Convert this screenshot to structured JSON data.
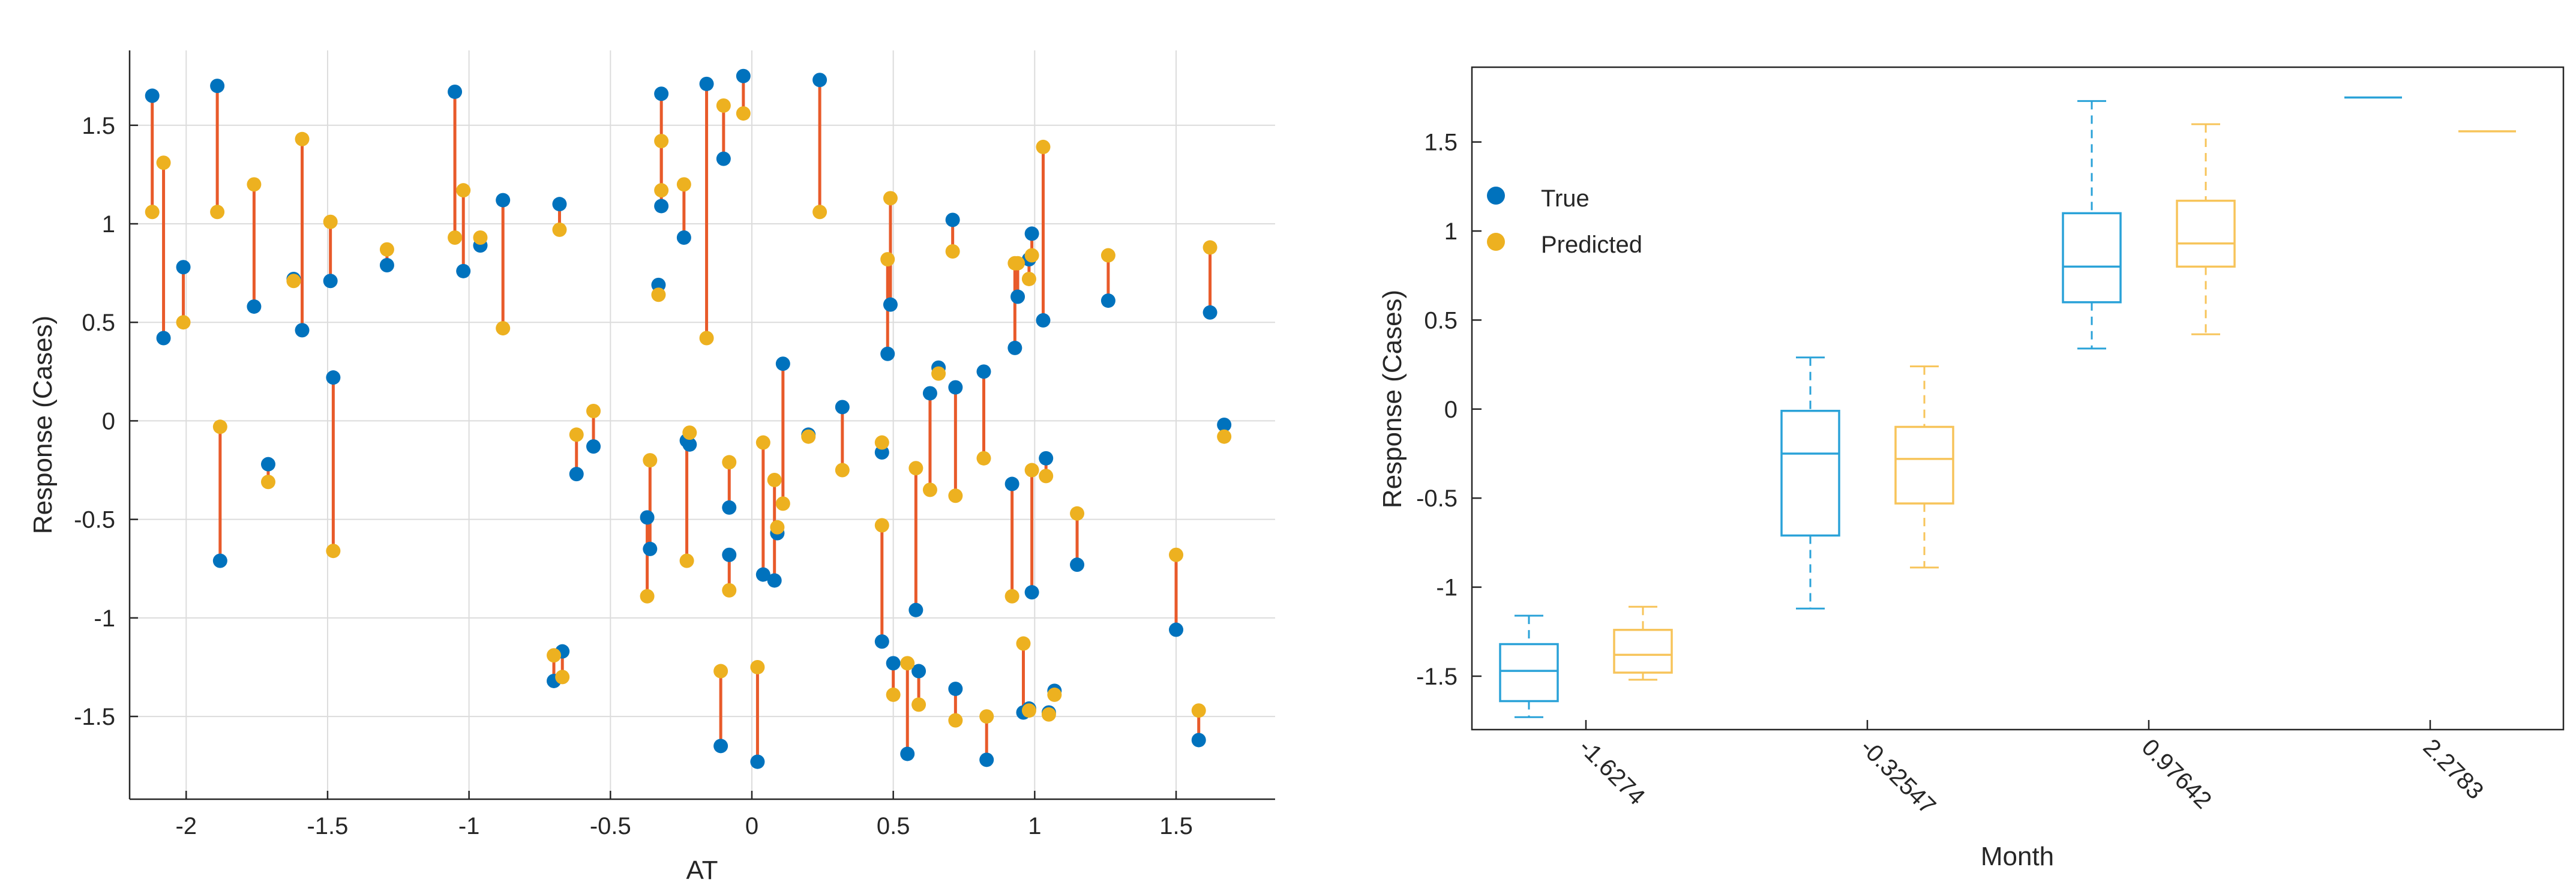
{
  "colors": {
    "true": "#0072BD",
    "predicted": "#EDB120",
    "residual": "#E85A2A",
    "axis": "#262626",
    "grid": "#dcdcdc"
  },
  "chart_data": [
    {
      "type": "scatter",
      "title": "",
      "xlabel": "AT",
      "ylabel": "Response (Cases)",
      "xlim": [
        -2.2,
        1.85
      ],
      "ylim": [
        -1.92,
        1.88
      ],
      "grid": true,
      "xticks": [
        -2,
        -1.5,
        -1,
        -0.5,
        0,
        0.5,
        1,
        1.5
      ],
      "xtick_labels": [
        "-2",
        "-1.5",
        "-1",
        "-0.5",
        "0",
        "0.5",
        "1",
        "1.5"
      ],
      "yticks": [
        -1.5,
        -1,
        -0.5,
        0,
        0.5,
        1,
        1.5
      ],
      "ytick_labels": [
        "-1.5",
        "-1",
        "-0.5",
        "0",
        "0.5",
        "1",
        "1.5"
      ],
      "series": [
        {
          "name": "True",
          "color": "#0072BD"
        },
        {
          "name": "Predicted",
          "color": "#EDB120"
        }
      ],
      "points": [
        {
          "x": -2.12,
          "true": 1.65,
          "pred": 1.06
        },
        {
          "x": -2.08,
          "true": 0.42,
          "pred": 1.31
        },
        {
          "x": -2.01,
          "true": 0.78,
          "pred": 0.5
        },
        {
          "x": -1.89,
          "true": 1.7,
          "pred": 1.06
        },
        {
          "x": -1.88,
          "true": -0.71,
          "pred": -0.03
        },
        {
          "x": -1.76,
          "true": 0.58,
          "pred": 1.2
        },
        {
          "x": -1.71,
          "true": -0.22,
          "pred": -0.31
        },
        {
          "x": -1.62,
          "true": 0.72,
          "pred": 0.71
        },
        {
          "x": -1.59,
          "true": 0.46,
          "pred": 1.43
        },
        {
          "x": -1.49,
          "true": 0.71,
          "pred": 1.01
        },
        {
          "x": -1.48,
          "true": 0.22,
          "pred": -0.66
        },
        {
          "x": -1.29,
          "true": 0.79,
          "pred": 0.87
        },
        {
          "x": -1.05,
          "true": 1.67,
          "pred": 0.93
        },
        {
          "x": -1.02,
          "true": 0.76,
          "pred": 1.17
        },
        {
          "x": -0.96,
          "true": 0.89,
          "pred": 0.93
        },
        {
          "x": -0.88,
          "true": 1.12,
          "pred": 0.47
        },
        {
          "x": -0.68,
          "true": 1.1,
          "pred": 0.97
        },
        {
          "x": -0.7,
          "true": -1.32,
          "pred": -1.19
        },
        {
          "x": -0.67,
          "true": -1.17,
          "pred": -1.3
        },
        {
          "x": -0.62,
          "true": -0.27,
          "pred": -0.07
        },
        {
          "x": -0.56,
          "true": -0.13,
          "pred": 0.05
        },
        {
          "x": -0.37,
          "true": -0.49,
          "pred": -0.89
        },
        {
          "x": -0.36,
          "true": -0.65,
          "pred": -0.2
        },
        {
          "x": -0.32,
          "true": 1.66,
          "pred": 1.17
        },
        {
          "x": -0.33,
          "true": 0.69,
          "pred": 0.64
        },
        {
          "x": -0.32,
          "true": 1.09,
          "pred": 1.42
        },
        {
          "x": -0.24,
          "true": 0.93,
          "pred": 1.2
        },
        {
          "x": -0.23,
          "true": -0.1,
          "pred": -0.71
        },
        {
          "x": -0.22,
          "true": -0.12,
          "pred": -0.06
        },
        {
          "x": -0.16,
          "true": 1.71,
          "pred": 0.42
        },
        {
          "x": -0.1,
          "true": 1.33,
          "pred": 1.6
        },
        {
          "x": -0.11,
          "true": -1.65,
          "pred": -1.27
        },
        {
          "x": -0.08,
          "true": -0.44,
          "pred": -0.21
        },
        {
          "x": -0.08,
          "true": -0.68,
          "pred": -0.86
        },
        {
          "x": -0.03,
          "true": 1.75,
          "pred": 1.56
        },
        {
          "x": 0.02,
          "true": -1.73,
          "pred": -1.25
        },
        {
          "x": 0.04,
          "true": -0.78,
          "pred": -0.11
        },
        {
          "x": 0.08,
          "true": -0.81,
          "pred": -0.3
        },
        {
          "x": 0.09,
          "true": -0.57,
          "pred": -0.54
        },
        {
          "x": 0.11,
          "true": 0.29,
          "pred": -0.42
        },
        {
          "x": 0.2,
          "true": -0.07,
          "pred": -0.08
        },
        {
          "x": 0.24,
          "true": 1.73,
          "pred": 1.06
        },
        {
          "x": 0.32,
          "true": 0.07,
          "pred": -0.25
        },
        {
          "x": 0.46,
          "true": -0.16,
          "pred": -0.11
        },
        {
          "x": 0.46,
          "true": -1.12,
          "pred": -0.53
        },
        {
          "x": 0.48,
          "true": 0.34,
          "pred": 0.82
        },
        {
          "x": 0.49,
          "true": 0.59,
          "pred": 1.13
        },
        {
          "x": 0.5,
          "true": -1.23,
          "pred": -1.39
        },
        {
          "x": 0.55,
          "true": -1.69,
          "pred": -1.23
        },
        {
          "x": 0.58,
          "true": -0.96,
          "pred": -0.24
        },
        {
          "x": 0.59,
          "true": -1.27,
          "pred": -1.44
        },
        {
          "x": 0.63,
          "true": 0.14,
          "pred": -0.35
        },
        {
          "x": 0.66,
          "true": 0.27,
          "pred": 0.24
        },
        {
          "x": 0.71,
          "true": 1.02,
          "pred": 0.86
        },
        {
          "x": 0.72,
          "true": 0.17,
          "pred": -0.38
        },
        {
          "x": 0.72,
          "true": -1.36,
          "pred": -1.52
        },
        {
          "x": 0.82,
          "true": 0.25,
          "pred": -0.19
        },
        {
          "x": 0.83,
          "true": -1.72,
          "pred": -1.5
        },
        {
          "x": 0.92,
          "true": -0.32,
          "pred": -0.89
        },
        {
          "x": 0.93,
          "true": 0.37,
          "pred": 0.8
        },
        {
          "x": 0.94,
          "true": 0.63,
          "pred": 0.8
        },
        {
          "x": 0.96,
          "true": -1.48,
          "pred": -1.13
        },
        {
          "x": 0.98,
          "true": 0.82,
          "pred": 0.72
        },
        {
          "x": 0.99,
          "true": 0.95,
          "pred": 0.84
        },
        {
          "x": 0.99,
          "true": -0.87,
          "pred": -0.25
        },
        {
          "x": 0.98,
          "true": -1.46,
          "pred": -1.47
        },
        {
          "x": 1.03,
          "true": 0.51,
          "pred": 1.39
        },
        {
          "x": 1.04,
          "true": -0.19,
          "pred": -0.28
        },
        {
          "x": 1.05,
          "true": -1.48,
          "pred": -1.49
        },
        {
          "x": 1.07,
          "true": -1.37,
          "pred": -1.39
        },
        {
          "x": 1.15,
          "true": -0.73,
          "pred": -0.47
        },
        {
          "x": 1.26,
          "true": 0.61,
          "pred": 0.84
        },
        {
          "x": 1.5,
          "true": -1.06,
          "pred": -0.68
        },
        {
          "x": 1.58,
          "true": -1.62,
          "pred": -1.47
        },
        {
          "x": 1.62,
          "true": 0.55,
          "pred": 0.88
        },
        {
          "x": 1.67,
          "true": -0.02,
          "pred": -0.08
        }
      ]
    },
    {
      "type": "box",
      "title": "",
      "xlabel": "Month",
      "ylabel": "Response (Cases)",
      "ylim": [
        -1.8,
        1.92
      ],
      "grid": false,
      "categories": [
        "-1.6274",
        "-0.32547",
        "0.97642",
        "2.2783"
      ],
      "yticks": [
        -1.5,
        -1,
        -0.5,
        0,
        0.5,
        1,
        1.5
      ],
      "ytick_labels": [
        "-1.5",
        "-1",
        "-0.5",
        "0",
        "0.5",
        "1",
        "1.5"
      ],
      "legend": {
        "position": "top-left",
        "entries": [
          "True",
          "Predicted"
        ]
      },
      "series": [
        {
          "name": "True",
          "color": "#2AA2D8",
          "boxes": [
            {
              "min": -1.73,
              "q1": -1.64,
              "median": -1.47,
              "q3": -1.32,
              "max": -1.16
            },
            {
              "min": -1.12,
              "q1": -0.71,
              "median": -0.25,
              "q3": -0.01,
              "max": 0.29
            },
            {
              "min": 0.34,
              "q1": 0.6,
              "median": 0.8,
              "q3": 1.1,
              "max": 1.73
            },
            {
              "min": 1.75,
              "q1": 1.75,
              "median": 1.75,
              "q3": 1.75,
              "max": 1.75
            }
          ]
        },
        {
          "name": "Predicted",
          "color": "#F7C45A",
          "boxes": [
            {
              "min": -1.52,
              "q1": -1.48,
              "median": -1.38,
              "q3": -1.24,
              "max": -1.11
            },
            {
              "min": -0.89,
              "q1": -0.53,
              "median": -0.28,
              "q3": -0.1,
              "max": 0.24
            },
            {
              "min": 0.42,
              "q1": 0.8,
              "median": 0.93,
              "q3": 1.17,
              "max": 1.6
            },
            {
              "min": 1.56,
              "q1": 1.56,
              "median": 1.56,
              "q3": 1.56,
              "max": 1.56
            }
          ]
        }
      ]
    }
  ]
}
